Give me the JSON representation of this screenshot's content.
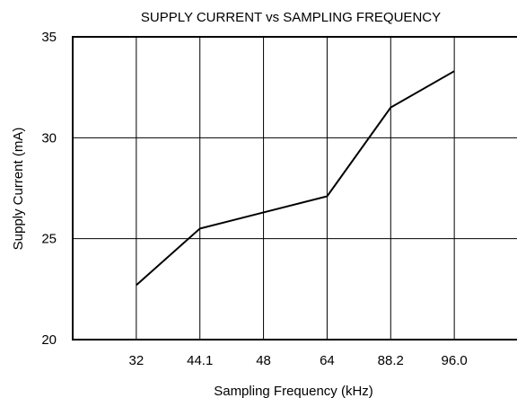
{
  "chart_data": {
    "type": "line",
    "title": "SUPPLY CURRENT vs SAMPLING FREQUENCY",
    "xlabel": "Sampling Frequency (kHz)",
    "ylabel": "Supply Current (mA)",
    "categories": [
      "32",
      "44.1",
      "48",
      "64",
      "88.2",
      "96.0"
    ],
    "values": [
      22.7,
      25.5,
      26.3,
      27.1,
      31.5,
      33.3
    ],
    "ylim": [
      20,
      35
    ],
    "yticks": [
      20,
      25,
      30,
      35
    ],
    "grid": true,
    "legend": "none"
  }
}
